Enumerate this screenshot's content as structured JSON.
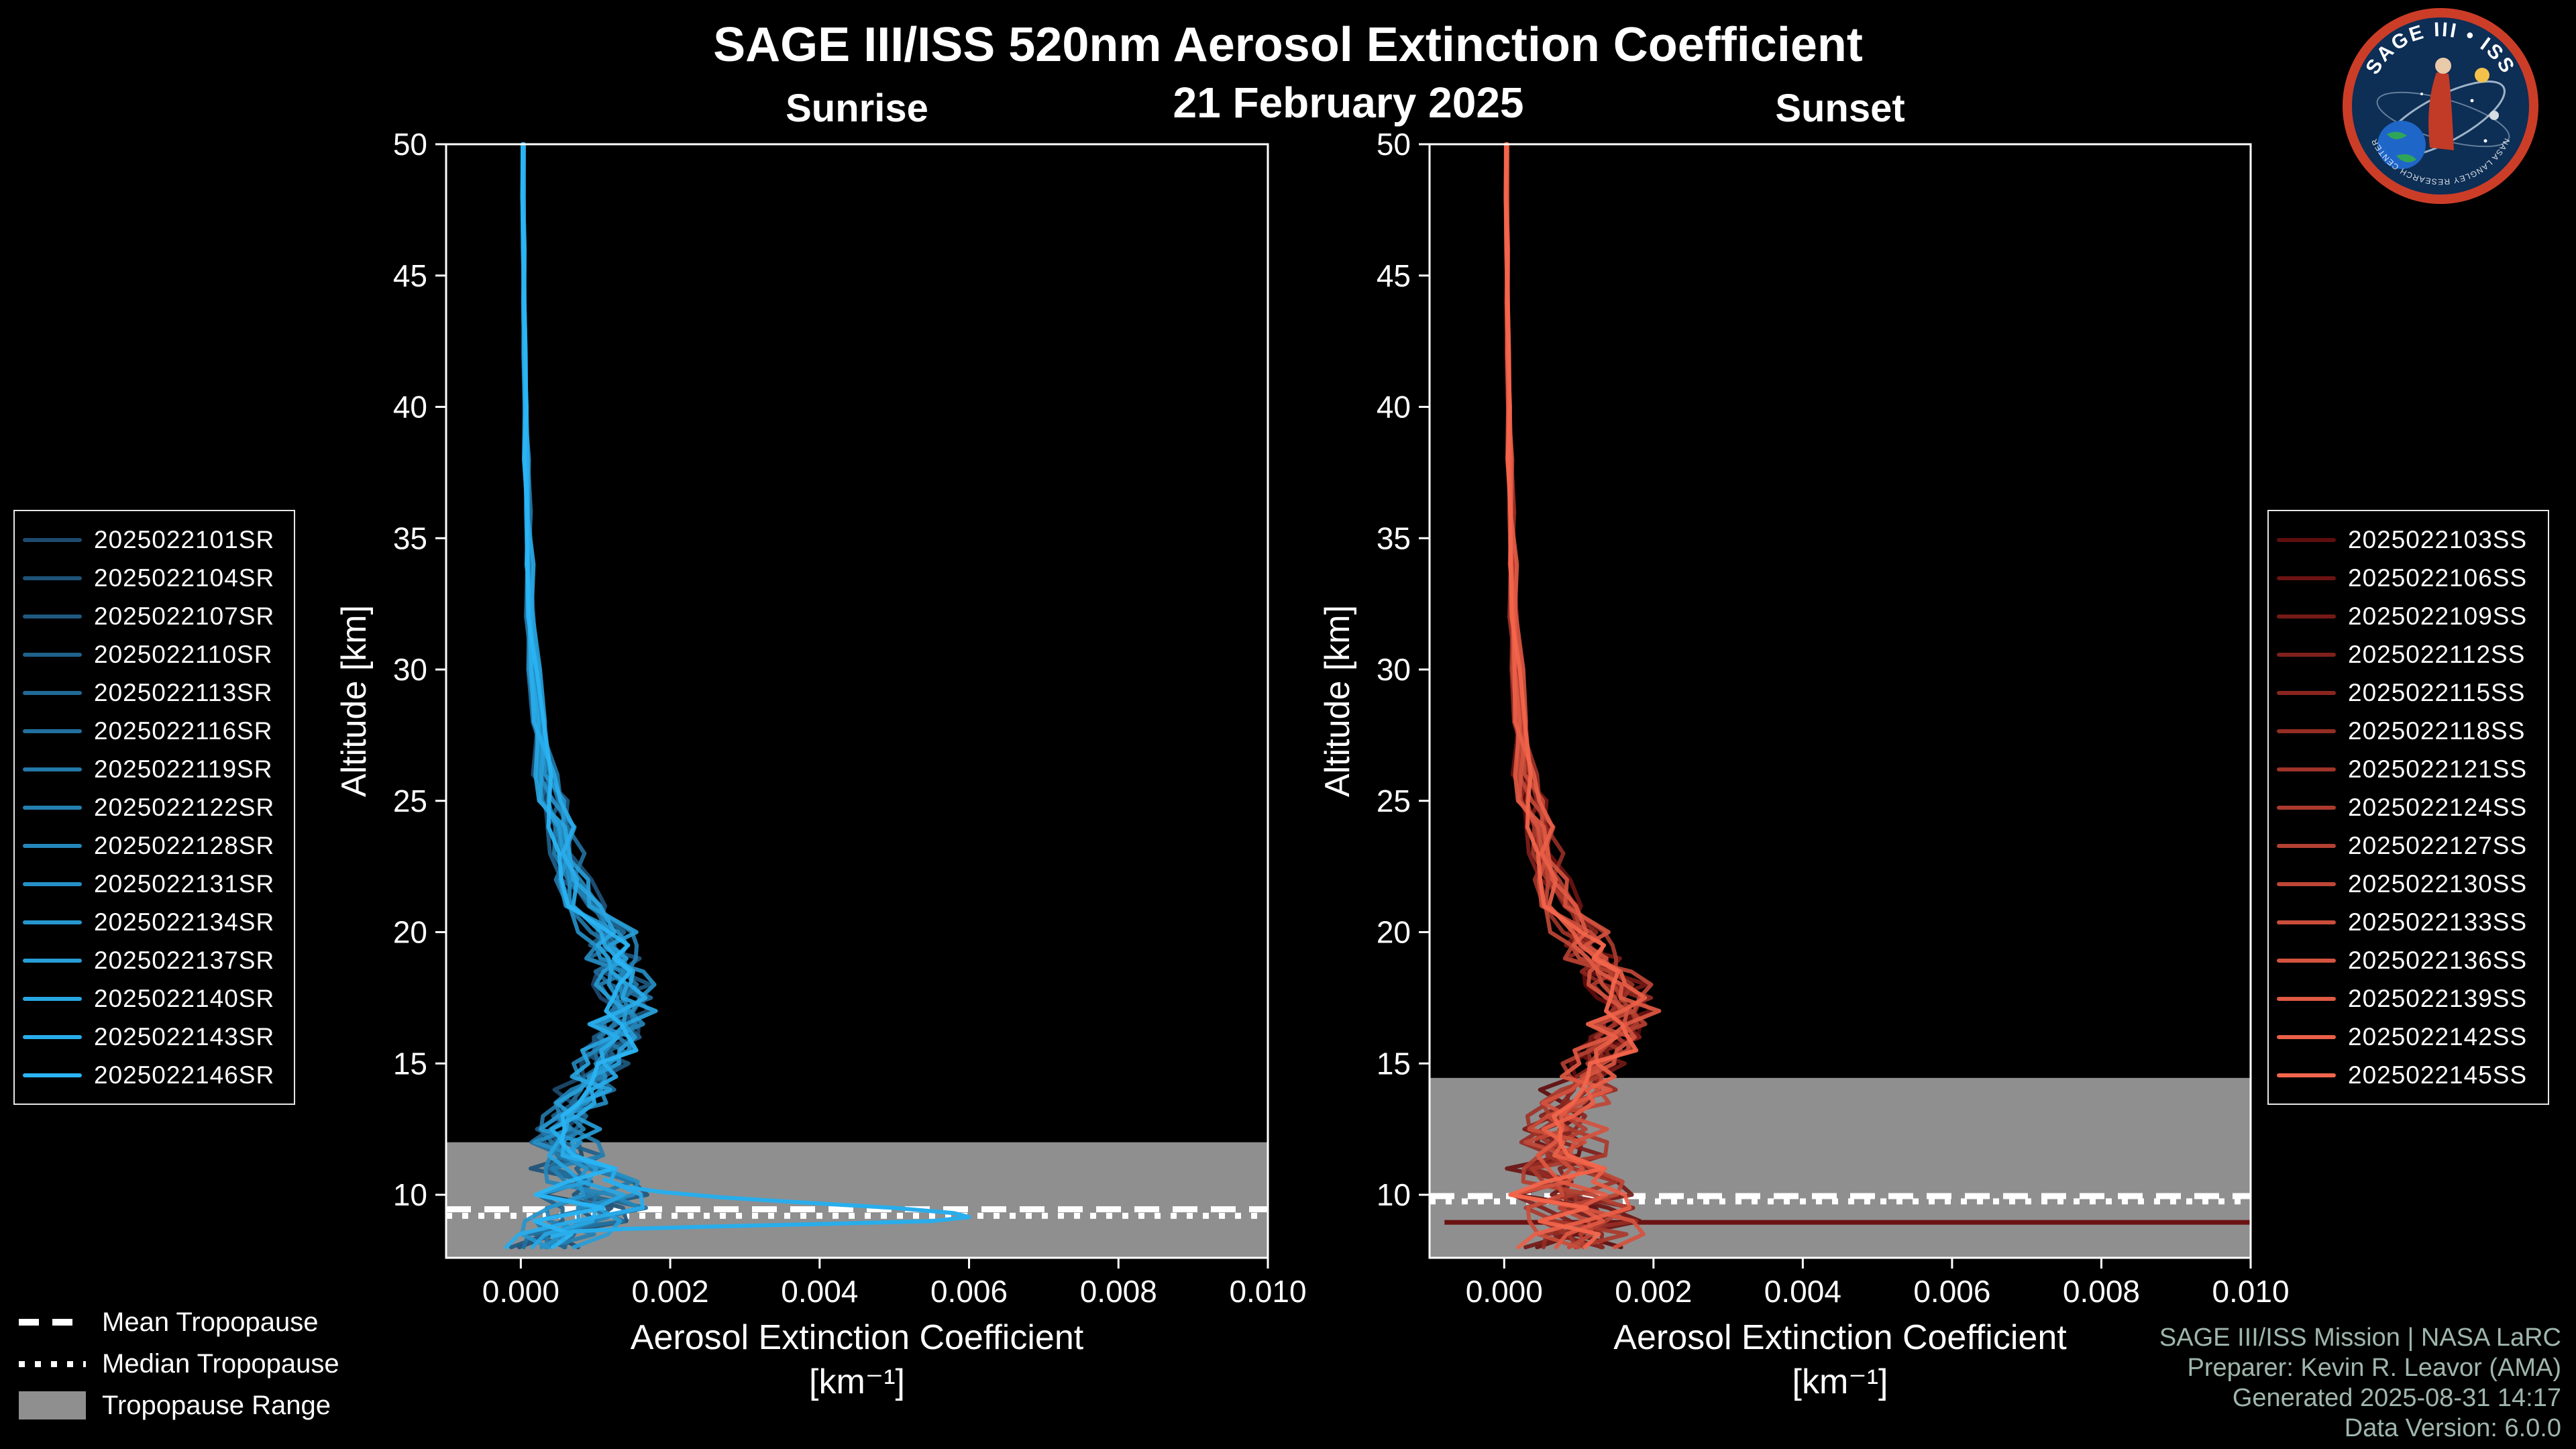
{
  "page": {
    "background": "#000000"
  },
  "header": {
    "title": "SAGE III/ISS 520nm Aerosol Extinction Coefficient",
    "date": "21 February 2025"
  },
  "logo": {
    "title": "SAGE III • ISS",
    "subtitle": "NASA LANGLEY RESEARCH CENTER"
  },
  "tropopause_legend": {
    "items": [
      {
        "label": "Mean Tropopause",
        "style": "dashed"
      },
      {
        "label": "Median Tropopause",
        "style": "dotted"
      },
      {
        "label": "Tropopause Range",
        "style": "band",
        "color": "#8f8f8f"
      }
    ]
  },
  "credits": {
    "lines": [
      "SAGE III/ISS Mission | NASA LaRC",
      "Preparer: Kevin R. Leavor (AMA)",
      "Generated 2025-08-31 14:17",
      "Data Version: 6.0.0"
    ]
  },
  "chart_data": [
    {
      "id": "sunrise",
      "type": "line",
      "panel_title": "Sunrise",
      "xlabel": "Aerosol Extinction Coefficient",
      "xlabel_units": "[km⁻¹]",
      "ylabel": "Altitude [km]",
      "xlim": [
        -0.001,
        0.01
      ],
      "ylim": [
        7.6,
        50
      ],
      "xticks": [
        0.0,
        0.002,
        0.004,
        0.006,
        0.008,
        0.01
      ],
      "xtick_labels": [
        "0.000",
        "0.002",
        "0.004",
        "0.006",
        "0.008",
        "0.010"
      ],
      "yticks": [
        10,
        15,
        20,
        25,
        30,
        35,
        40,
        45,
        50
      ],
      "grid": false,
      "legend_position": "outside-left",
      "color_start": "#1d4a6e",
      "color_end": "#2ab5f5",
      "tropopause_band_color": "#8f8f8f",
      "tropopause": {
        "mean_km": 9.45,
        "median_km": 9.2,
        "range_top_km": 12.0,
        "range_bottom_km": 7.6
      },
      "series_names": [
        "2025022101SR",
        "2025022104SR",
        "2025022107SR",
        "2025022110SR",
        "2025022113SR",
        "2025022116SR",
        "2025022119SR",
        "2025022122SR",
        "2025022128SR",
        "2025022131SR",
        "2025022134SR",
        "2025022137SR",
        "2025022140SR",
        "2025022143SR",
        "2025022146SR"
      ],
      "profile": {
        "altitude_km": [
          50,
          48,
          46,
          44,
          42,
          40,
          38,
          36,
          34,
          32,
          30,
          28,
          26,
          25,
          24,
          23,
          22,
          21,
          20,
          19.5,
          19,
          18.5,
          18,
          17.5,
          17,
          16.5,
          16,
          15.5,
          15,
          14.5,
          14,
          13.5,
          13,
          12.5,
          12,
          11.5,
          11,
          10.5,
          10,
          9.5,
          9,
          8.5,
          8
        ],
        "extinction_mean": [
          3e-05,
          3e-05,
          4e-05,
          4e-05,
          5e-05,
          6e-05,
          7e-05,
          9e-05,
          0.00011,
          0.00014,
          0.00018,
          0.00025,
          0.00035,
          0.00042,
          0.0005,
          0.0006,
          0.00072,
          0.0009,
          0.00115,
          0.0012,
          0.00125,
          0.0013,
          0.00135,
          0.0014,
          0.00138,
          0.00132,
          0.00125,
          0.00118,
          0.00112,
          0.001,
          0.0009,
          0.0008,
          0.0007,
          0.00062,
          0.0006,
          0.00066,
          0.00075,
          0.00085,
          0.00095,
          0.00105,
          0.0008,
          0.0005,
          0.0003
        ],
        "extinction_spread": [
          2e-05,
          2e-05,
          2e-05,
          2e-05,
          3e-05,
          3e-05,
          3e-05,
          4e-05,
          4e-05,
          5e-05,
          6e-05,
          8e-05,
          0.00012,
          0.00014,
          0.00016,
          0.00018,
          0.0002,
          0.00024,
          0.00028,
          0.00028,
          0.00028,
          0.00028,
          0.00028,
          0.00028,
          0.00028,
          0.00028,
          0.00028,
          0.00028,
          0.0003,
          0.0003,
          0.0003,
          0.0003,
          0.0003,
          0.00032,
          0.00035,
          0.0004,
          0.00045,
          0.0005,
          0.00055,
          0.0006,
          0.00055,
          0.00045,
          0.00035
        ]
      },
      "outlier": {
        "series_index": 13,
        "points": [
          [
            10.6,
            0.0011
          ],
          [
            10.3,
            0.0014
          ],
          [
            10.1,
            0.0019
          ],
          [
            9.9,
            0.0027
          ],
          [
            9.7,
            0.0038
          ],
          [
            9.5,
            0.005
          ],
          [
            9.3,
            0.0058
          ],
          [
            9.15,
            0.006
          ],
          [
            9.0,
            0.0055
          ],
          [
            8.9,
            0.0042
          ],
          [
            8.8,
            0.0027
          ],
          [
            8.7,
            0.0014
          ],
          [
            8.6,
            0.0007
          ],
          [
            8.4,
            0.0004
          ]
        ]
      }
    },
    {
      "id": "sunset",
      "type": "line",
      "panel_title": "Sunset",
      "xlabel": "Aerosol Extinction Coefficient",
      "xlabel_units": "[km⁻¹]",
      "ylabel": "Altitude [km]",
      "xlim": [
        -0.001,
        0.01
      ],
      "ylim": [
        7.6,
        50
      ],
      "xticks": [
        0.0,
        0.002,
        0.004,
        0.006,
        0.008,
        0.01
      ],
      "xtick_labels": [
        "0.000",
        "0.002",
        "0.004",
        "0.006",
        "0.008",
        "0.010"
      ],
      "yticks": [
        10,
        15,
        20,
        25,
        30,
        35,
        40,
        45,
        50
      ],
      "grid": false,
      "legend_position": "outside-right",
      "color_start": "#5f0d0d",
      "color_end": "#f4664c",
      "tropopause_band_color": "#8f8f8f",
      "tropopause": {
        "mean_km": 9.95,
        "median_km": 9.75,
        "range_top_km": 14.45,
        "range_bottom_km": 7.6
      },
      "series_names": [
        "2025022103SS",
        "2025022106SS",
        "2025022109SS",
        "2025022112SS",
        "2025022115SS",
        "2025022118SS",
        "2025022121SS",
        "2025022124SS",
        "2025022127SS",
        "2025022130SS",
        "2025022133SS",
        "2025022136SS",
        "2025022139SS",
        "2025022142SS",
        "2025022145SS"
      ],
      "profile": {
        "altitude_km": [
          50,
          48,
          46,
          44,
          42,
          40,
          38,
          36,
          34,
          32,
          30,
          28,
          26,
          25,
          24,
          23,
          22,
          21,
          20,
          19.5,
          19,
          18.5,
          18,
          17.5,
          17,
          16.5,
          16,
          15.5,
          15,
          14.5,
          14,
          13.5,
          13,
          12.5,
          12,
          11.5,
          11,
          10.5,
          10,
          9.5,
          9,
          8.5,
          8
        ],
        "extinction_mean": [
          3e-05,
          3e-05,
          4e-05,
          4e-05,
          5e-05,
          6e-05,
          7e-05,
          9e-05,
          0.00011,
          0.00014,
          0.00018,
          0.00022,
          0.0003,
          0.00036,
          0.00044,
          0.00054,
          0.00066,
          0.0008,
          0.001,
          0.0011,
          0.0012,
          0.00135,
          0.0015,
          0.0016,
          0.00162,
          0.00155,
          0.00145,
          0.00135,
          0.00125,
          0.00115,
          0.00105,
          0.00095,
          0.00085,
          0.0008,
          0.00082,
          0.0008,
          0.00075,
          0.0008,
          0.0009,
          0.00105,
          0.00115,
          0.00105,
          0.0009
        ],
        "extinction_spread": [
          2e-05,
          2e-05,
          2e-05,
          2e-05,
          3e-05,
          3e-05,
          3e-05,
          4e-05,
          4e-05,
          5e-05,
          6e-05,
          8e-05,
          0.00012,
          0.00014,
          0.00016,
          0.00018,
          0.0002,
          0.00024,
          0.00028,
          0.00028,
          0.00029,
          0.00029,
          0.0003,
          0.0003,
          0.0003,
          0.0003,
          0.0003,
          0.00032,
          0.00034,
          0.00036,
          0.00038,
          0.0004,
          0.0004,
          0.00042,
          0.00045,
          0.0005,
          0.00052,
          0.00055,
          0.0006,
          0.00065,
          0.0006,
          0.00055,
          0.0005
        ]
      },
      "flatline": {
        "series_index": 1,
        "altitude_km": 8.95,
        "x_start": -0.0008,
        "x_end": 0.0102
      }
    }
  ]
}
